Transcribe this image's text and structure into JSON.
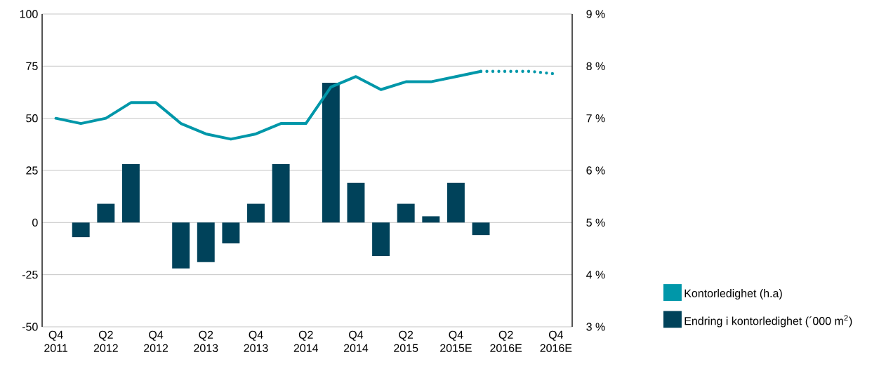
{
  "chart_data": {
    "type": "bar",
    "categories": [
      "Q4 2011",
      null,
      "Q2 2012",
      null,
      "Q4 2012",
      null,
      "Q2 2013",
      null,
      "Q4 2013",
      null,
      "Q2 2014",
      null,
      "Q4 2014",
      null,
      "Q2 2015",
      null,
      "Q4 2015E",
      null,
      "Q2 2016E",
      null,
      "Q4 2016E"
    ],
    "series": [
      {
        "name": "Kontorledighet (h.a)",
        "type": "line",
        "axis": "y2",
        "color": "#0097a9",
        "line_style": "solid",
        "values": [
          7.0,
          6.9,
          7.0,
          7.3,
          7.3,
          6.9,
          6.7,
          6.6,
          6.7,
          6.9,
          6.9,
          7.6,
          7.8,
          7.55,
          7.7,
          7.7,
          7.8,
          7.9,
          null,
          null,
          null
        ]
      },
      {
        "name": "Endring i kontorledighet (´000 m$^{2}$)",
        "color": "#00425a",
        "values": [
          null,
          -7,
          9,
          28,
          null,
          -22,
          -19,
          -10,
          9,
          28,
          null,
          67,
          19,
          -16,
          9,
          3,
          19,
          -6,
          null,
          null,
          null
        ]
      },
      {
        "type": "line",
        "axis": "y2",
        "color": "#0097a9",
        "line_style": "dotted",
        "values": [
          null,
          null,
          null,
          null,
          null,
          null,
          null,
          null,
          null,
          null,
          null,
          null,
          null,
          null,
          null,
          null,
          null,
          7.9,
          7.9,
          7.9,
          7.85
        ]
      }
    ],
    "ylim": [
      -50,
      100
    ],
    "yticks": [
      -50,
      -25,
      0,
      25,
      50,
      75,
      100
    ],
    "y2lim": [
      3,
      9
    ],
    "y2ticks": [
      {
        "value": 3,
        "label": "3 %"
      },
      {
        "value": 4,
        "label": "4 %"
      },
      {
        "value": 5,
        "label": "5 %"
      },
      {
        "value": 6,
        "label": "6 %"
      },
      {
        "value": 7,
        "label": "7 %"
      },
      {
        "value": 8,
        "label": "8 %"
      },
      {
        "value": 9,
        "label": "9 %"
      }
    ],
    "grid": "y",
    "legend": "right",
    "marker": "none"
  }
}
